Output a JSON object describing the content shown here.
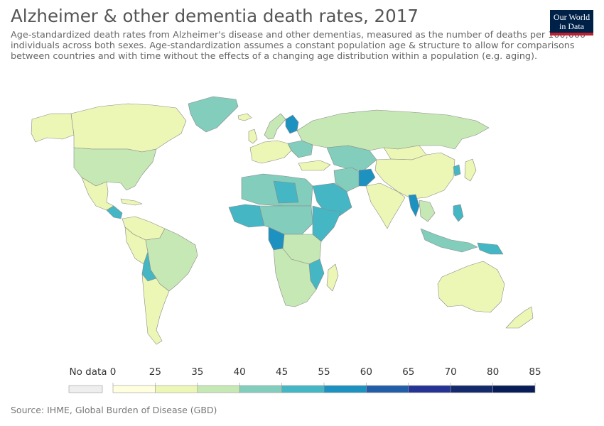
{
  "header": {
    "title": "Alzheimer & other dementia death rates, 2017",
    "subtitle": "Age-standardized death rates from Alzheimer's disease and other dementias, measured as the number of deaths per 100,000 individuals across both sexes. Age-standardization assumes a constant population age & structure to allow for comparisons between countries and with time without the effects of a changing age distribution within a population (e.g. aging).",
    "logo_line1": "Our World",
    "logo_line2": "in Data"
  },
  "legend": {
    "no_data_label": "No data",
    "no_data_color": "#eeeeee",
    "bins": [
      {
        "from": "0",
        "to": "25",
        "color": "#ffffe0"
      },
      {
        "from": "25",
        "to": "35",
        "color": "#ecf6b5"
      },
      {
        "from": "35",
        "to": "40",
        "color": "#c6e8b4"
      },
      {
        "from": "40",
        "to": "45",
        "color": "#82cdbb"
      },
      {
        "from": "45",
        "to": "55",
        "color": "#44b6c4"
      },
      {
        "from": "55",
        "to": "60",
        "color": "#1d91c0"
      },
      {
        "from": "60",
        "to": "65",
        "color": "#225ea8"
      },
      {
        "from": "65",
        "to": "70",
        "color": "#253494"
      },
      {
        "from": "70",
        "to": "80",
        "color": "#142a6b"
      },
      {
        "from": "80",
        "to": "85",
        "color": "#081d58"
      }
    ]
  },
  "source": "Source: IHME, Global Burden of Disease (GBD)"
}
